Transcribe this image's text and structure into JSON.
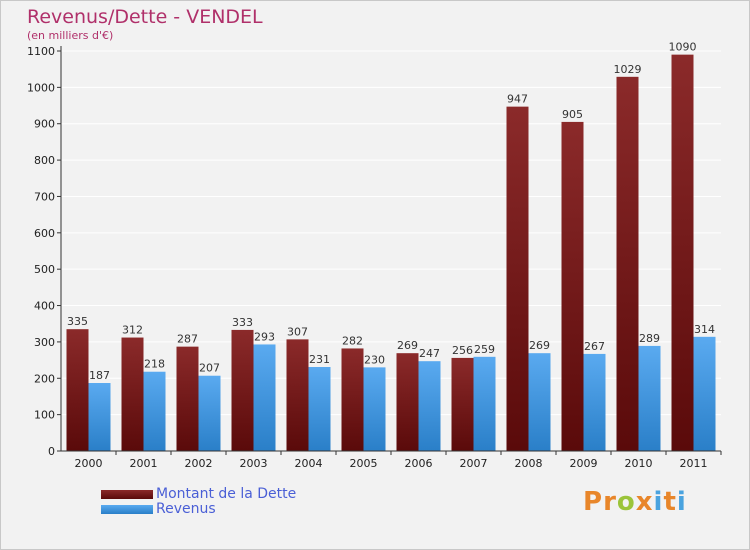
{
  "header": {
    "title": "Revenus/Dette - VENDEL",
    "subtitle": "(en milliers d'€)"
  },
  "colors": {
    "debt_top": "#8b2a2a",
    "debt_bottom": "#5a0a0a",
    "revenue_top": "#5aaaf0",
    "revenue_bottom": "#2a7fc8",
    "axis": "#333333",
    "grid": "#ffffff"
  },
  "legend": {
    "items": [
      {
        "label": "Montant de la Dette"
      },
      {
        "label": "Revenus"
      }
    ]
  },
  "logo": {
    "text": "Proxiti",
    "letters": [
      {
        "ch": "P",
        "color": "#e8862a"
      },
      {
        "ch": "r",
        "color": "#e8862a"
      },
      {
        "ch": "o",
        "color": "#9bc43a"
      },
      {
        "ch": "x",
        "color": "#e8862a"
      },
      {
        "ch": "i",
        "color": "#4aa3df"
      },
      {
        "ch": "t",
        "color": "#e8862a"
      },
      {
        "ch": "i",
        "color": "#4aa3df"
      }
    ]
  },
  "chart_data": {
    "type": "bar",
    "title": "Revenus/Dette - VENDEL",
    "ylabel": "(en milliers d'€)",
    "xlabel": "",
    "categories": [
      "2000",
      "2001",
      "2002",
      "2003",
      "2004",
      "2005",
      "2006",
      "2007",
      "2008",
      "2009",
      "2010",
      "2011"
    ],
    "series": [
      {
        "name": "Montant de la Dette",
        "values": [
          335,
          312,
          287,
          333,
          307,
          282,
          269,
          256,
          947,
          905,
          1029,
          1090
        ]
      },
      {
        "name": "Revenus",
        "values": [
          187,
          218,
          207,
          293,
          231,
          230,
          247,
          259,
          269,
          267,
          289,
          314
        ]
      }
    ],
    "ylim": [
      0,
      1100
    ],
    "yticks": [
      0,
      100,
      200,
      300,
      400,
      500,
      600,
      700,
      800,
      900,
      1000,
      1100
    ],
    "grid": true,
    "legend_position": "bottom-left"
  }
}
